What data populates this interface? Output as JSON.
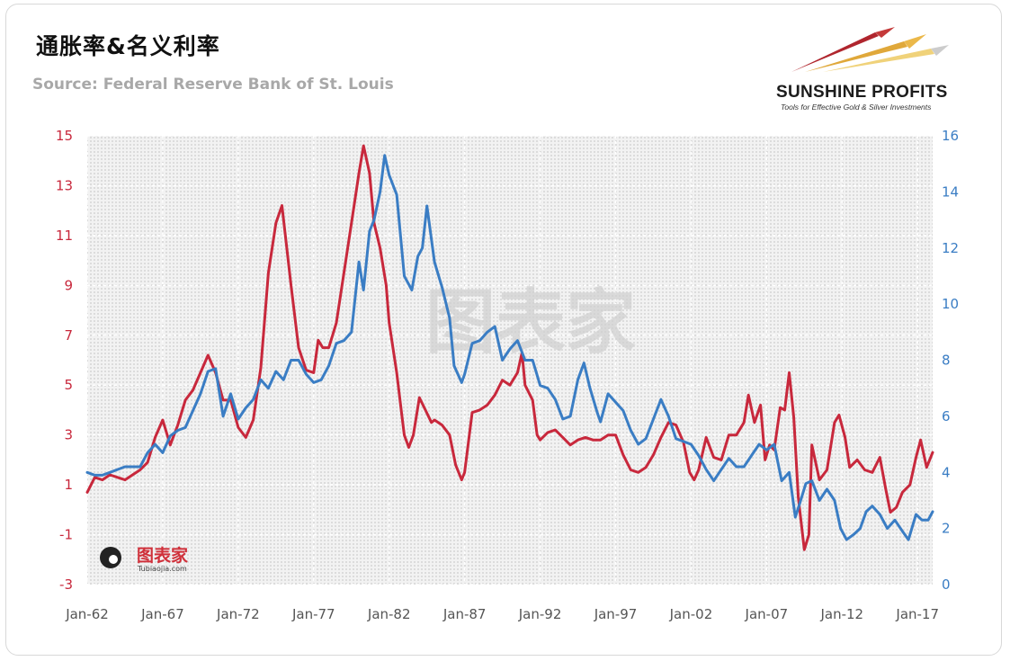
{
  "chart_data": {
    "type": "line",
    "title": "通胀率&名义利率",
    "subtitle": "Source: Federal Reserve Bank of St. Louis",
    "x_tick_labels": [
      "Jan-62",
      "Jan-67",
      "Jan-72",
      "Jan-77",
      "Jan-82",
      "Jan-87",
      "Jan-92",
      "Jan-97",
      "Jan-02",
      "Jan-07",
      "Jan-12",
      "Jan-17"
    ],
    "x_range": [
      1962.0,
      2018.0
    ],
    "y_left": {
      "range": [
        -3,
        15
      ],
      "ticks": [
        -3,
        -1,
        1,
        3,
        5,
        7,
        9,
        11,
        13,
        15
      ],
      "color": "#c8283c"
    },
    "y_right": {
      "range": [
        0,
        16
      ],
      "ticks": [
        0,
        2,
        4,
        6,
        8,
        10,
        12,
        14,
        16
      ],
      "color": "#3a7dc4"
    },
    "grid": true,
    "series": [
      {
        "axis": "left",
        "color": "#c8283c",
        "points": [
          [
            1962.0,
            0.7
          ],
          [
            1962.5,
            1.3
          ],
          [
            1963.0,
            1.2
          ],
          [
            1963.5,
            1.4
          ],
          [
            1964.0,
            1.3
          ],
          [
            1964.5,
            1.2
          ],
          [
            1965.0,
            1.4
          ],
          [
            1965.5,
            1.6
          ],
          [
            1966.0,
            1.9
          ],
          [
            1966.5,
            2.9
          ],
          [
            1967.0,
            3.6
          ],
          [
            1967.5,
            2.6
          ],
          [
            1968.0,
            3.4
          ],
          [
            1968.5,
            4.4
          ],
          [
            1969.0,
            4.8
          ],
          [
            1969.5,
            5.5
          ],
          [
            1970.0,
            6.2
          ],
          [
            1970.5,
            5.5
          ],
          [
            1971.0,
            4.4
          ],
          [
            1971.5,
            4.4
          ],
          [
            1972.0,
            3.3
          ],
          [
            1972.5,
            2.9
          ],
          [
            1973.0,
            3.6
          ],
          [
            1973.5,
            5.7
          ],
          [
            1974.0,
            9.5
          ],
          [
            1974.5,
            11.5
          ],
          [
            1974.9,
            12.2
          ],
          [
            1975.5,
            9.0
          ],
          [
            1976.0,
            6.5
          ],
          [
            1976.5,
            5.6
          ],
          [
            1977.0,
            5.5
          ],
          [
            1977.3,
            6.8
          ],
          [
            1977.6,
            6.5
          ],
          [
            1978.0,
            6.5
          ],
          [
            1978.5,
            7.5
          ],
          [
            1979.0,
            9.5
          ],
          [
            1979.5,
            11.5
          ],
          [
            1980.0,
            13.5
          ],
          [
            1980.3,
            14.6
          ],
          [
            1980.7,
            13.5
          ],
          [
            1981.0,
            11.5
          ],
          [
            1981.4,
            10.5
          ],
          [
            1981.8,
            9.0
          ],
          [
            1982.0,
            7.5
          ],
          [
            1982.5,
            5.5
          ],
          [
            1982.8,
            4.0
          ],
          [
            1983.0,
            3.0
          ],
          [
            1983.3,
            2.5
          ],
          [
            1983.6,
            3.0
          ],
          [
            1984.0,
            4.5
          ],
          [
            1984.4,
            4.0
          ],
          [
            1984.8,
            3.5
          ],
          [
            1985.0,
            3.6
          ],
          [
            1985.5,
            3.4
          ],
          [
            1986.0,
            3.0
          ],
          [
            1986.4,
            1.8
          ],
          [
            1986.8,
            1.2
          ],
          [
            1987.0,
            1.5
          ],
          [
            1987.5,
            3.9
          ],
          [
            1988.0,
            4.0
          ],
          [
            1988.5,
            4.2
          ],
          [
            1989.0,
            4.6
          ],
          [
            1989.5,
            5.2
          ],
          [
            1990.0,
            5.0
          ],
          [
            1990.5,
            5.5
          ],
          [
            1990.8,
            6.3
          ],
          [
            1991.0,
            5.0
          ],
          [
            1991.5,
            4.4
          ],
          [
            1991.8,
            3.0
          ],
          [
            1992.0,
            2.8
          ],
          [
            1992.5,
            3.1
          ],
          [
            1993.0,
            3.2
          ],
          [
            1993.5,
            2.9
          ],
          [
            1994.0,
            2.6
          ],
          [
            1994.5,
            2.8
          ],
          [
            1995.0,
            2.9
          ],
          [
            1995.5,
            2.8
          ],
          [
            1996.0,
            2.8
          ],
          [
            1996.5,
            3.0
          ],
          [
            1997.0,
            3.0
          ],
          [
            1997.5,
            2.2
          ],
          [
            1998.0,
            1.6
          ],
          [
            1998.5,
            1.5
          ],
          [
            1999.0,
            1.7
          ],
          [
            1999.5,
            2.2
          ],
          [
            2000.0,
            2.9
          ],
          [
            2000.5,
            3.5
          ],
          [
            2001.0,
            3.4
          ],
          [
            2001.5,
            2.7
          ],
          [
            2001.9,
            1.5
          ],
          [
            2002.2,
            1.2
          ],
          [
            2002.5,
            1.6
          ],
          [
            2003.0,
            2.9
          ],
          [
            2003.5,
            2.1
          ],
          [
            2004.0,
            2.0
          ],
          [
            2004.5,
            3.0
          ],
          [
            2005.0,
            3.0
          ],
          [
            2005.5,
            3.5
          ],
          [
            2005.8,
            4.6
          ],
          [
            2006.2,
            3.5
          ],
          [
            2006.6,
            4.2
          ],
          [
            2006.9,
            2.0
          ],
          [
            2007.2,
            2.6
          ],
          [
            2007.5,
            2.4
          ],
          [
            2007.9,
            4.1
          ],
          [
            2008.2,
            4.0
          ],
          [
            2008.5,
            5.5
          ],
          [
            2008.8,
            3.7
          ],
          [
            2009.1,
            0.5
          ],
          [
            2009.5,
            -1.6
          ],
          [
            2009.8,
            -1.0
          ],
          [
            2010.0,
            2.6
          ],
          [
            2010.5,
            1.2
          ],
          [
            2011.0,
            1.6
          ],
          [
            2011.5,
            3.5
          ],
          [
            2011.8,
            3.8
          ],
          [
            2012.2,
            2.9
          ],
          [
            2012.5,
            1.7
          ],
          [
            2013.0,
            2.0
          ],
          [
            2013.5,
            1.6
          ],
          [
            2014.0,
            1.5
          ],
          [
            2014.5,
            2.1
          ],
          [
            2014.9,
            0.8
          ],
          [
            2015.2,
            -0.1
          ],
          [
            2015.6,
            0.1
          ],
          [
            2016.0,
            0.7
          ],
          [
            2016.5,
            1.0
          ],
          [
            2016.9,
            2.1
          ],
          [
            2017.2,
            2.8
          ],
          [
            2017.6,
            1.7
          ],
          [
            2018.0,
            2.3
          ]
        ]
      },
      {
        "axis": "right",
        "color": "#3a7dc4",
        "points": [
          [
            1962.0,
            4.0
          ],
          [
            1962.5,
            3.9
          ],
          [
            1963.0,
            3.9
          ],
          [
            1963.5,
            4.0
          ],
          [
            1964.0,
            4.1
          ],
          [
            1964.5,
            4.2
          ],
          [
            1965.0,
            4.2
          ],
          [
            1965.5,
            4.2
          ],
          [
            1966.0,
            4.7
          ],
          [
            1966.5,
            5.0
          ],
          [
            1967.0,
            4.7
          ],
          [
            1967.5,
            5.3
          ],
          [
            1968.0,
            5.5
          ],
          [
            1968.5,
            5.6
          ],
          [
            1969.0,
            6.2
          ],
          [
            1969.5,
            6.8
          ],
          [
            1970.0,
            7.6
          ],
          [
            1970.5,
            7.7
          ],
          [
            1971.0,
            6.0
          ],
          [
            1971.5,
            6.8
          ],
          [
            1972.0,
            5.9
          ],
          [
            1972.5,
            6.3
          ],
          [
            1973.0,
            6.6
          ],
          [
            1973.5,
            7.3
          ],
          [
            1974.0,
            7.0
          ],
          [
            1974.5,
            7.6
          ],
          [
            1975.0,
            7.3
          ],
          [
            1975.5,
            8.0
          ],
          [
            1976.0,
            8.0
          ],
          [
            1976.5,
            7.5
          ],
          [
            1977.0,
            7.2
          ],
          [
            1977.5,
            7.3
          ],
          [
            1978.0,
            7.8
          ],
          [
            1978.5,
            8.6
          ],
          [
            1979.0,
            8.7
          ],
          [
            1979.5,
            9.0
          ],
          [
            1980.0,
            11.5
          ],
          [
            1980.3,
            10.5
          ],
          [
            1980.7,
            12.6
          ],
          [
            1981.0,
            13.0
          ],
          [
            1981.4,
            14.0
          ],
          [
            1981.7,
            15.3
          ],
          [
            1982.0,
            14.6
          ],
          [
            1982.5,
            13.9
          ],
          [
            1983.0,
            11.0
          ],
          [
            1983.5,
            10.5
          ],
          [
            1983.9,
            11.7
          ],
          [
            1984.2,
            12.0
          ],
          [
            1984.5,
            13.5
          ],
          [
            1985.0,
            11.5
          ],
          [
            1985.5,
            10.6
          ],
          [
            1986.0,
            9.5
          ],
          [
            1986.3,
            7.8
          ],
          [
            1986.8,
            7.2
          ],
          [
            1987.0,
            7.5
          ],
          [
            1987.5,
            8.6
          ],
          [
            1988.0,
            8.7
          ],
          [
            1988.5,
            9.0
          ],
          [
            1989.0,
            9.2
          ],
          [
            1989.5,
            8.0
          ],
          [
            1990.0,
            8.4
          ],
          [
            1990.5,
            8.7
          ],
          [
            1991.0,
            8.0
          ],
          [
            1991.5,
            8.0
          ],
          [
            1992.0,
            7.1
          ],
          [
            1992.5,
            7.0
          ],
          [
            1993.0,
            6.6
          ],
          [
            1993.5,
            5.9
          ],
          [
            1994.0,
            6.0
          ],
          [
            1994.5,
            7.3
          ],
          [
            1994.9,
            7.9
          ],
          [
            1995.3,
            7.0
          ],
          [
            1995.8,
            6.1
          ],
          [
            1996.0,
            5.8
          ],
          [
            1996.5,
            6.8
          ],
          [
            1997.0,
            6.5
          ],
          [
            1997.5,
            6.2
          ],
          [
            1998.0,
            5.5
          ],
          [
            1998.5,
            5.0
          ],
          [
            1999.0,
            5.2
          ],
          [
            1999.5,
            5.9
          ],
          [
            2000.0,
            6.6
          ],
          [
            2000.5,
            6.0
          ],
          [
            2001.0,
            5.2
          ],
          [
            2001.5,
            5.1
          ],
          [
            2002.0,
            5.0
          ],
          [
            2002.5,
            4.6
          ],
          [
            2003.0,
            4.1
          ],
          [
            2003.5,
            3.7
          ],
          [
            2004.0,
            4.1
          ],
          [
            2004.5,
            4.5
          ],
          [
            2005.0,
            4.2
          ],
          [
            2005.5,
            4.2
          ],
          [
            2006.0,
            4.6
          ],
          [
            2006.5,
            5.0
          ],
          [
            2007.0,
            4.8
          ],
          [
            2007.5,
            5.0
          ],
          [
            2008.0,
            3.7
          ],
          [
            2008.5,
            4.0
          ],
          [
            2008.9,
            2.4
          ],
          [
            2009.2,
            2.9
          ],
          [
            2009.6,
            3.6
          ],
          [
            2010.0,
            3.7
          ],
          [
            2010.5,
            3.0
          ],
          [
            2011.0,
            3.4
          ],
          [
            2011.5,
            3.0
          ],
          [
            2011.9,
            2.0
          ],
          [
            2012.3,
            1.6
          ],
          [
            2012.8,
            1.8
          ],
          [
            2013.2,
            2.0
          ],
          [
            2013.6,
            2.6
          ],
          [
            2014.0,
            2.8
          ],
          [
            2014.5,
            2.5
          ],
          [
            2015.0,
            2.0
          ],
          [
            2015.5,
            2.3
          ],
          [
            2016.0,
            1.9
          ],
          [
            2016.4,
            1.6
          ],
          [
            2016.9,
            2.5
          ],
          [
            2017.3,
            2.3
          ],
          [
            2017.7,
            2.3
          ],
          [
            2018.0,
            2.6
          ]
        ]
      }
    ]
  },
  "brand": {
    "name": "SUNSHINE PROFITS",
    "tagline": "Tools for Effective Gold & Silver Investments"
  },
  "watermarks": {
    "center": "图表家",
    "bottom_left": "图表家",
    "bottom_left_sub": "Tubiaojia.com"
  },
  "colors": {
    "inflation": "#c8283c",
    "rate": "#3a7dc4",
    "plot_background": "#e9e9e9"
  }
}
